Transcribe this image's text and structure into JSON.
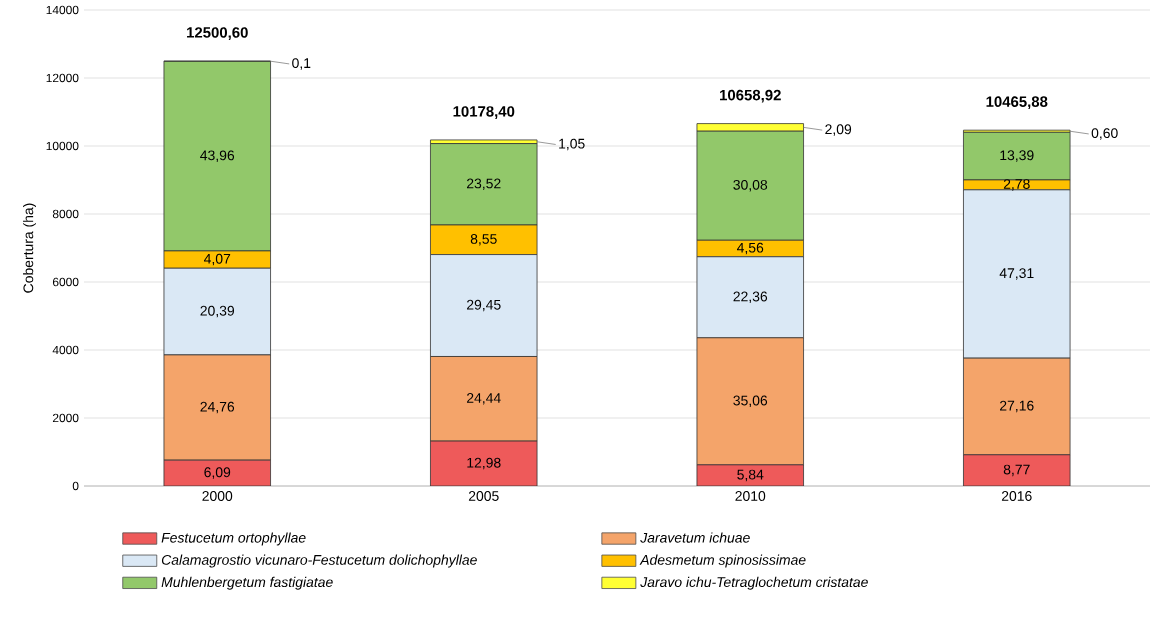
{
  "chart_data": {
    "type": "bar",
    "stacked": true,
    "ylabel": "Cobertura (ha)",
    "categories": [
      "2000",
      "2005",
      "2010",
      "2016"
    ],
    "series": [
      {
        "name": "Festucetum ortophyllae",
        "color": "#ee5a5a",
        "values": [
          761,
          1321,
          622,
          918
        ]
      },
      {
        "name": "Jaravetum ichuae",
        "color": "#f4a46a",
        "values": [
          3095,
          2488,
          3737,
          2843
        ]
      },
      {
        "name": "Calamagrostio vicunaro-Festucetum dolichophyllae",
        "color": "#dae8f5",
        "values": [
          2549,
          2998,
          2383,
          4949.88
        ]
      },
      {
        "name": "Adesmetum spinosissimae",
        "color": "#ffc000",
        "values": [
          509,
          870,
          486,
          291
        ]
      },
      {
        "name": "Muhlenbergetum fastigiatae",
        "color": "#92c86a",
        "values": [
          5573.6,
          2394.4,
          3207.92,
          1401
        ]
      },
      {
        "name": "Jaravo ichu-Tetraglochetum cristatae",
        "color": "#ffff33",
        "values": [
          13,
          107,
          223,
          63
        ]
      }
    ],
    "totals": [
      "12500,60",
      "10178,40",
      "10658,92",
      "10465,88"
    ],
    "annotations": [
      "6,09",
      "24,76",
      "20,39",
      "4,07",
      "43,96",
      "0,1",
      "12,98",
      "24,44",
      "29,45",
      "8,55",
      "23,52",
      "1,05",
      "5,84",
      "35,06",
      "22,36",
      "4,56",
      "30,08",
      "2,09",
      "8,77",
      "27,16",
      "47,31",
      "2,78",
      "13,39",
      "0,60"
    ],
    "ylim": [
      0,
      14000
    ],
    "yticks": [
      0,
      2000,
      4000,
      6000,
      8000,
      10000,
      12000,
      14000
    ],
    "grid": "y",
    "legend": "bottom"
  }
}
